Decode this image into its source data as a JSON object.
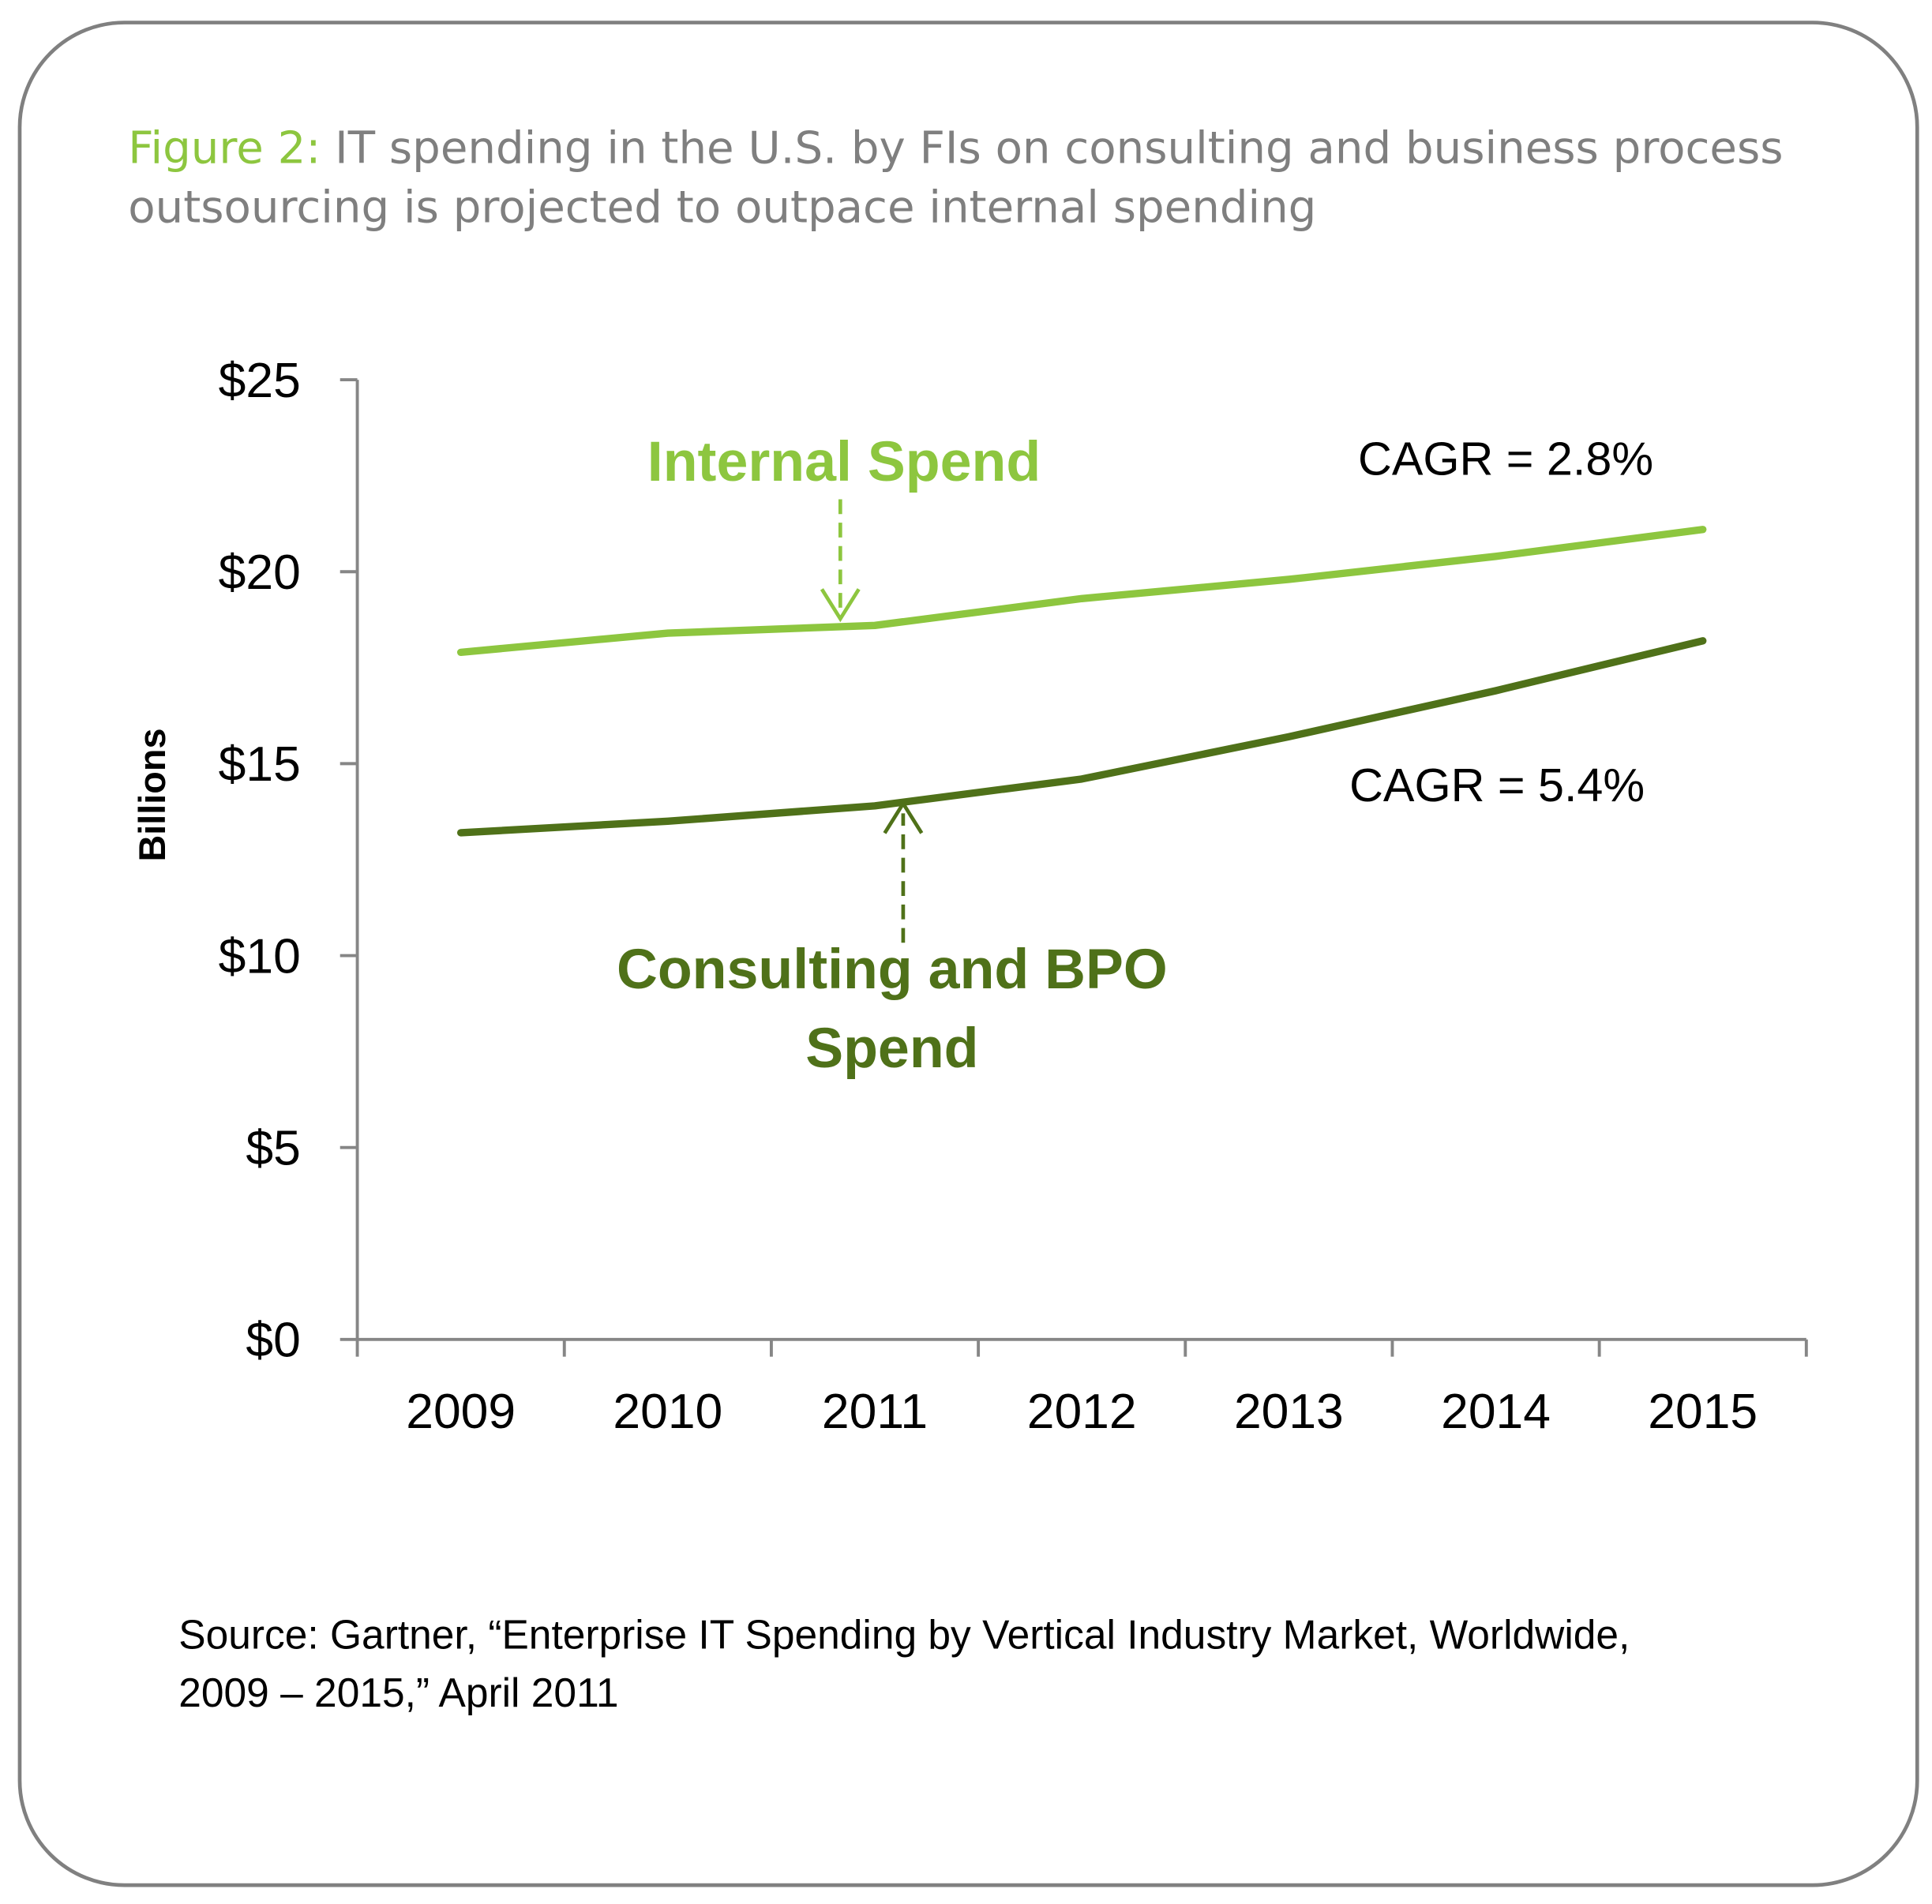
{
  "title": {
    "prefix": "Figure 2:",
    "line1": " IT spending in the U.S. by FIs on consulting and business process",
    "line2": "outsourcing is projected to outpace internal spending"
  },
  "source": {
    "line1": "Source: Gartner, “Enterprise IT Spending by Vertical Industry Market, Worldwide,",
    "line2": "2009 – 2015,” April 2011"
  },
  "chart_data": {
    "type": "line",
    "title": "IT spending in the U.S. by FIs on consulting and business process outsourcing is projected to outpace internal spending",
    "xlabel": "",
    "ylabel": "Billions",
    "x": [
      "2009",
      "2010",
      "2011",
      "2012",
      "2013",
      "2014",
      "2015"
    ],
    "ylim": [
      0,
      25
    ],
    "yticks": [
      0,
      5,
      10,
      15,
      20,
      25
    ],
    "ytick_labels": [
      "$0",
      "$5",
      "$10",
      "$15",
      "$20",
      "$25"
    ],
    "grid": false,
    "series": [
      {
        "name": "Internal Spend",
        "color": "#8dc63f",
        "values": [
          17.9,
          18.4,
          18.6,
          19.3,
          19.8,
          20.4,
          21.1
        ],
        "annotation": "CAGR = 2.8%"
      },
      {
        "name": "Consulting and BPO Spend",
        "label_lines": [
          "Consulting and BPO",
          "Spend"
        ],
        "color": "#4f7119",
        "values": [
          13.2,
          13.5,
          13.9,
          14.6,
          15.7,
          16.9,
          18.2
        ],
        "annotation": "CAGR = 5.4%"
      }
    ]
  }
}
